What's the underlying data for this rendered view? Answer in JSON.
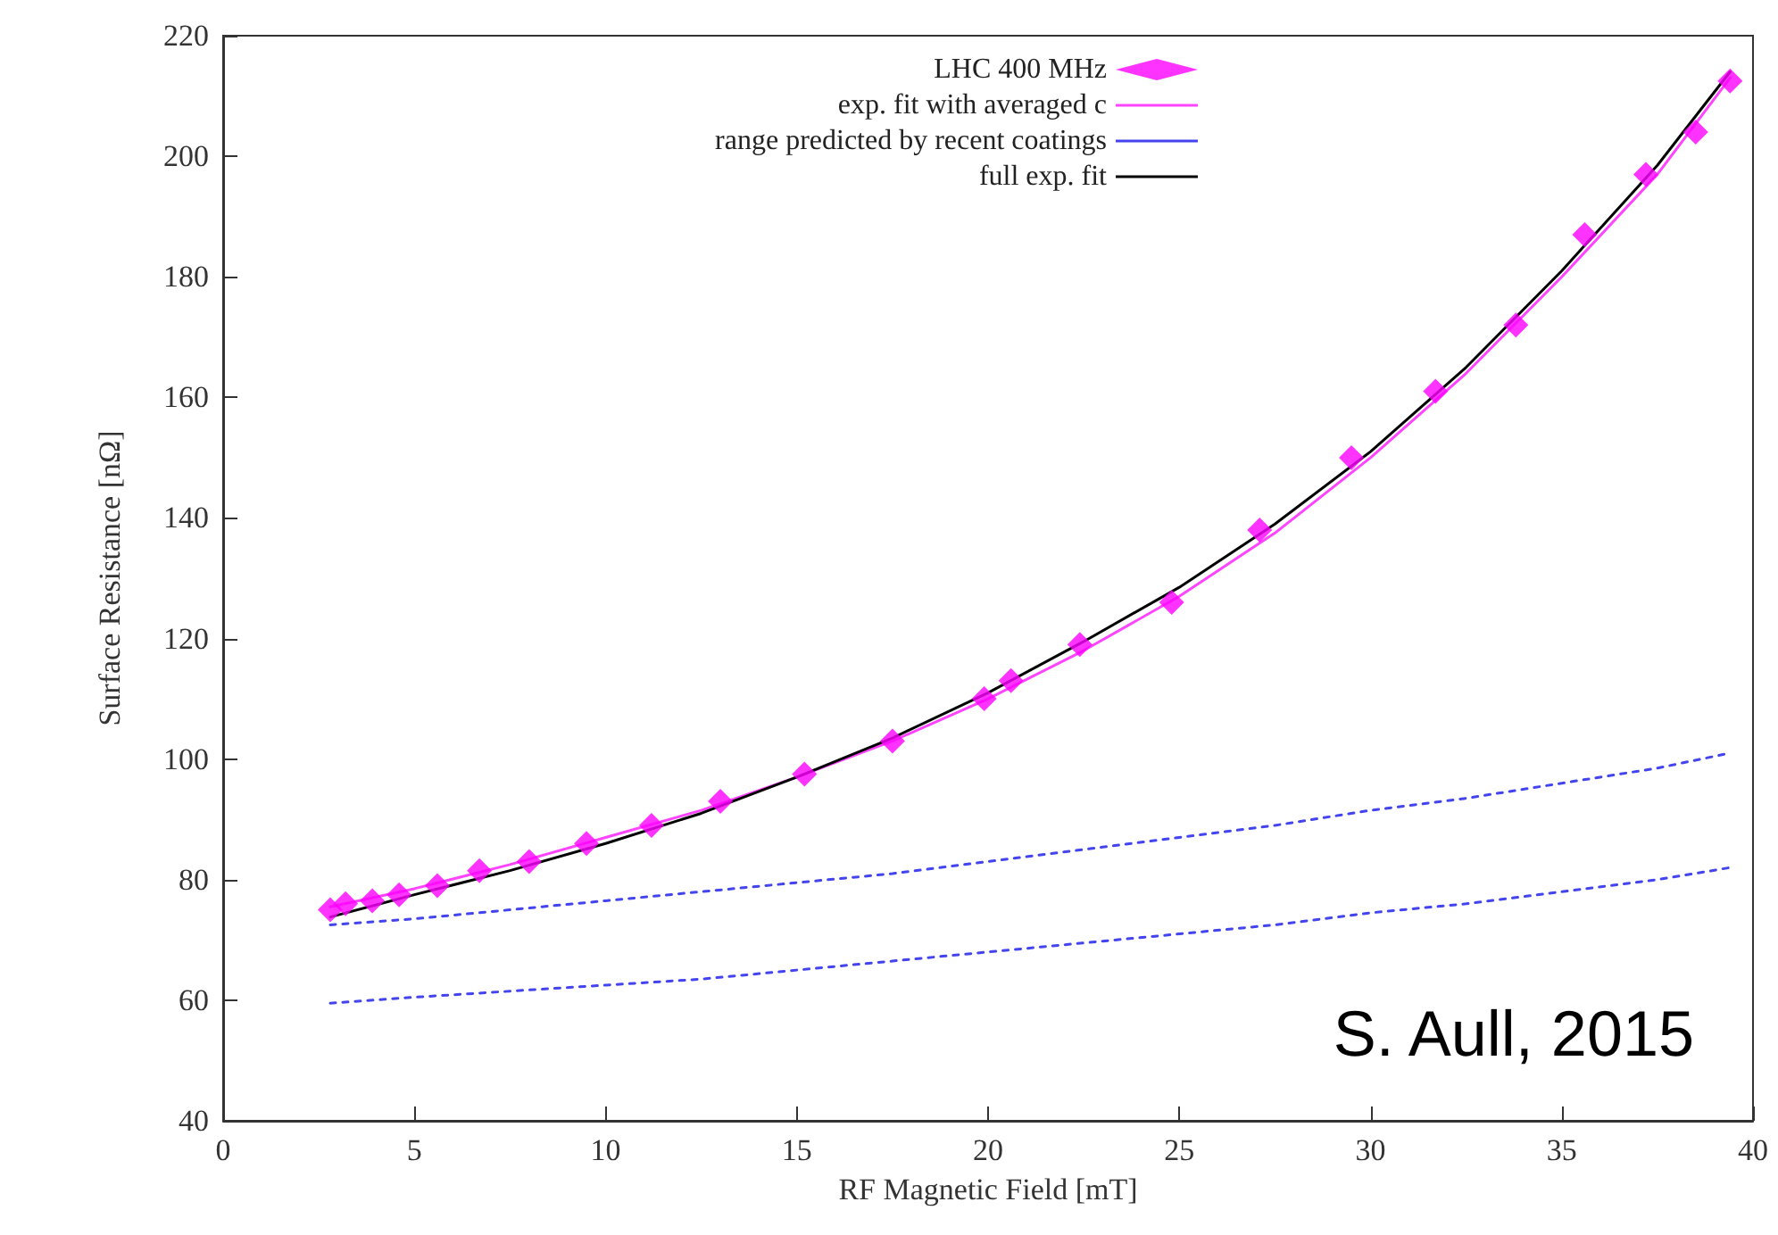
{
  "chart_data": {
    "type": "line",
    "xlabel": "RF Magnetic Field [mT]",
    "ylabel": "Surface Resistance [nΩ]",
    "xlim": [
      0,
      40
    ],
    "xticks": [
      0,
      5,
      10,
      15,
      20,
      25,
      30,
      35,
      40
    ],
    "ylim": [
      40,
      220
    ],
    "yticks": [
      40,
      60,
      80,
      100,
      120,
      140,
      160,
      180,
      200,
      220
    ],
    "grid": false,
    "legend": "top right",
    "annotations": [
      "S. Aull, 2015"
    ],
    "series": [
      {
        "name": "LHC 400 MHz",
        "type": "scatter",
        "marker": "diamond",
        "color": "#ff00ff",
        "x": [
          2.8,
          3.2,
          3.9,
          4.6,
          5.6,
          6.7,
          8,
          9.5,
          11.2,
          13,
          15.2,
          17.5,
          19.9,
          20.6,
          22.4,
          24.8,
          27.1,
          29.5,
          31.7,
          33.8,
          35.6,
          37.2,
          38.5,
          39.4
        ],
        "values": [
          75,
          76,
          76.5,
          77.5,
          79,
          81.5,
          83,
          86,
          89,
          93,
          97.5,
          103,
          110,
          113,
          119,
          126,
          138,
          150,
          161,
          172,
          187,
          197,
          204,
          212.5
        ]
      },
      {
        "name": "exp. fit with averaged c",
        "marker": "none",
        "line_style": "solid",
        "color": "#ff44ff",
        "x": [
          2.8,
          5,
          7.5,
          10,
          12.5,
          15,
          17.5,
          20,
          22.5,
          25,
          27.5,
          30,
          32.5,
          35,
          37.5,
          39.4
        ],
        "values": [
          75.5,
          78.5,
          82.5,
          87,
          91.5,
          97,
          103,
          110,
          118,
          127,
          137.5,
          150,
          164,
          180,
          197,
          213
        ]
      },
      {
        "name": "range predicted by recent coatings",
        "marker": "none",
        "line_style": "dashed",
        "color": "#4444ee",
        "x": [
          2.8,
          5,
          7.5,
          10,
          12.5,
          15,
          17.5,
          20,
          22.5,
          25,
          27.5,
          30,
          32.5,
          35,
          37.5,
          39.4
        ],
        "values": [
          72.5,
          73.5,
          75,
          76.5,
          78,
          79.5,
          81,
          83,
          85,
          87,
          89,
          91.5,
          93.5,
          96,
          98.5,
          101
        ]
      },
      {
        "marker": "none",
        "line_style": "dashed",
        "color": "#4444ee",
        "x": [
          2.8,
          5,
          7.5,
          10,
          12.5,
          15,
          17.5,
          20,
          22.5,
          25,
          27.5,
          30,
          32.5,
          35,
          37.5,
          39.4
        ],
        "values": [
          59.5,
          60.5,
          61.5,
          62.5,
          63.5,
          65,
          66.5,
          68,
          69.5,
          71,
          72.5,
          74.5,
          76,
          78,
          80,
          82
        ]
      },
      {
        "name": "full exp. fit",
        "marker": "none",
        "line_style": "solid",
        "color": "#000000",
        "x": [
          2.8,
          5,
          7.5,
          10,
          12.5,
          15,
          17.5,
          20,
          22.5,
          25,
          27.5,
          30,
          32.5,
          35,
          37.5,
          39.4
        ],
        "values": [
          73.8,
          77.5,
          81.5,
          86,
          91,
          97,
          103.5,
          111,
          119.5,
          128.5,
          139,
          151,
          165,
          181,
          198.5,
          214
        ]
      }
    ]
  }
}
